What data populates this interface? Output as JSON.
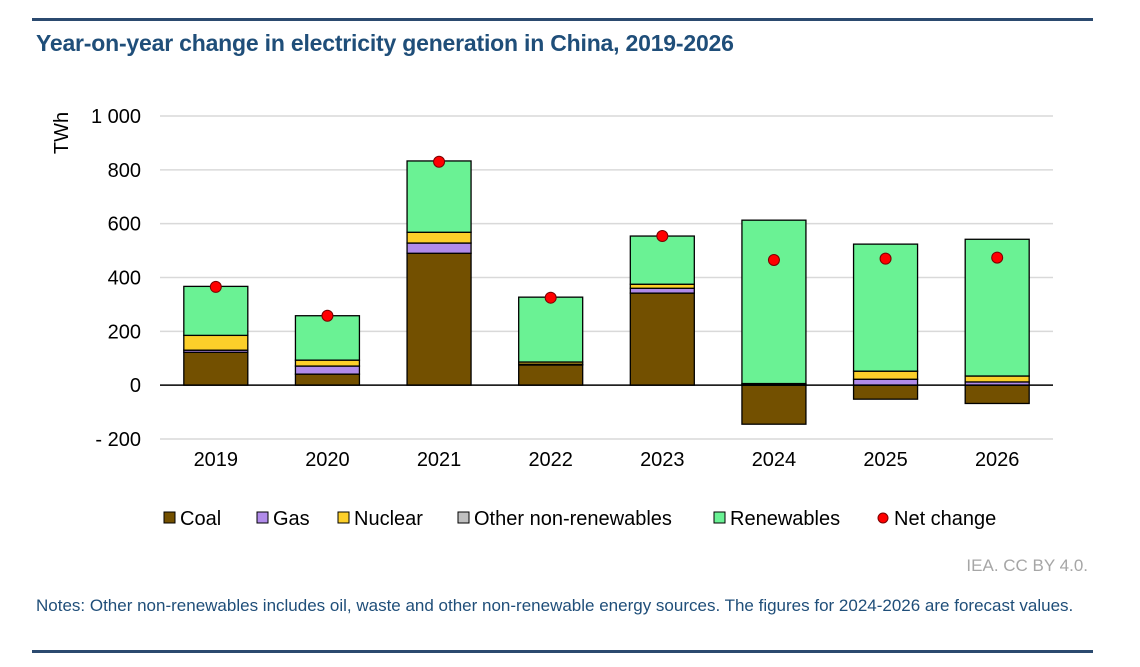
{
  "header": {
    "title": "Year-on-year change in electricity generation in China, 2019-2026"
  },
  "chart_data": {
    "type": "bar",
    "stacked": true,
    "title": "Year-on-year change in electricity generation in China, 2019-2026",
    "xlabel": "",
    "ylabel": "TWh",
    "ylim": [
      -200,
      1000
    ],
    "yticks": [
      -200,
      0,
      200,
      400,
      600,
      800,
      1000
    ],
    "ytick_labels": [
      "- 200",
      "0",
      "200",
      "400",
      "600",
      "800",
      "1 000"
    ],
    "grid": true,
    "legend_position": "bottom",
    "categories": [
      "2019",
      "2020",
      "2021",
      "2022",
      "2023",
      "2024",
      "2025",
      "2026"
    ],
    "series": [
      {
        "name": "Coal",
        "color": "#735000",
        "values": [
          122,
          41,
          490,
          75,
          342,
          -145,
          -52,
          -68
        ]
      },
      {
        "name": "Gas",
        "color": "#b18bea",
        "values": [
          8,
          30,
          38,
          3,
          18,
          3,
          22,
          12
        ]
      },
      {
        "name": "Nuclear",
        "color": "#fccf2a",
        "values": [
          55,
          22,
          40,
          8,
          15,
          3,
          30,
          22
        ]
      },
      {
        "name": "Other non-renewables",
        "color": "#bfbfbf",
        "values": [
          0,
          0,
          0,
          0,
          0,
          0,
          0,
          0
        ]
      },
      {
        "name": "Renewables",
        "color": "#6af294",
        "values": [
          182,
          165,
          265,
          241,
          179,
          607,
          472,
          508
        ]
      }
    ],
    "net_change": {
      "name": "Net change",
      "color": "#ff0000",
      "values": [
        365,
        258,
        830,
        325,
        554,
        465,
        470,
        474
      ]
    }
  },
  "footer": {
    "source": "IEA. CC BY 4.0.",
    "notes": "Notes: Other non-renewables includes oil, waste and other non-renewable energy sources. The figures for 2024-2026 are forecast values."
  }
}
